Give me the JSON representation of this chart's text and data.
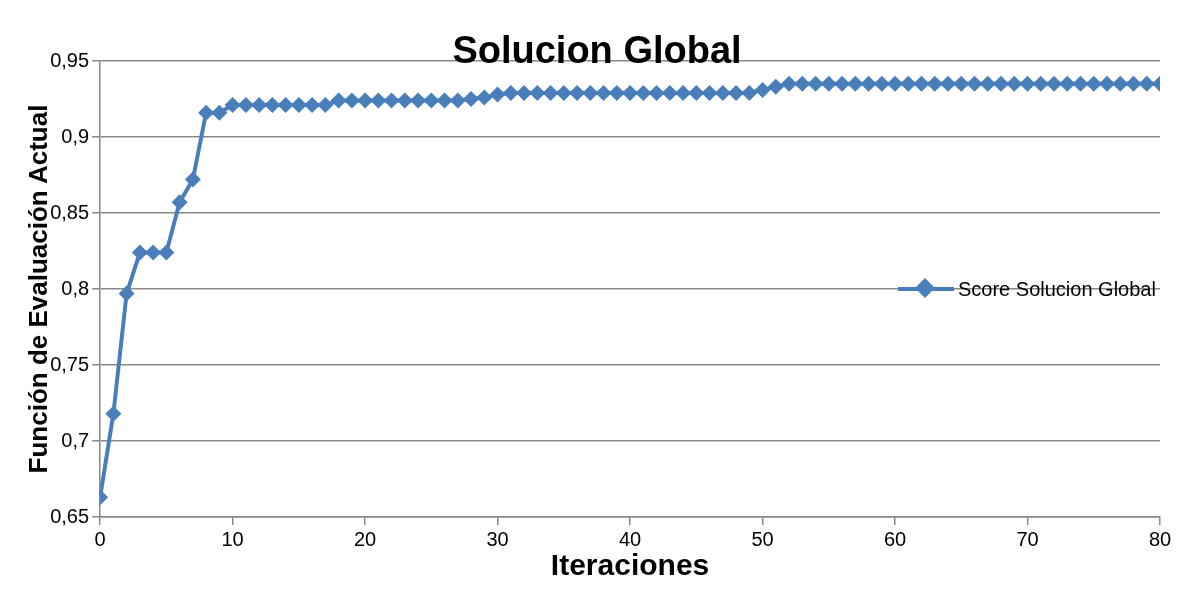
{
  "chart_data": {
    "type": "line",
    "title": "Solucion Global",
    "xlabel": "Iteraciones",
    "ylabel": "Función de Evaluación Actual",
    "x": [
      0,
      1,
      2,
      3,
      4,
      5,
      6,
      7,
      8,
      9,
      10,
      11,
      12,
      13,
      14,
      15,
      16,
      17,
      18,
      19,
      20,
      21,
      22,
      23,
      24,
      25,
      26,
      27,
      28,
      29,
      30,
      31,
      32,
      33,
      34,
      35,
      36,
      37,
      38,
      39,
      40,
      41,
      42,
      43,
      44,
      45,
      46,
      47,
      48,
      49,
      50,
      51,
      52,
      53,
      54,
      55,
      56,
      57,
      58,
      59,
      60,
      61,
      62,
      63,
      64,
      65,
      66,
      67,
      68,
      69,
      70,
      71,
      72,
      73,
      74,
      75,
      76,
      77,
      78,
      79,
      80
    ],
    "series": [
      {
        "name": "Score Solucion Global",
        "color": "#4a7ebb",
        "values": [
          0.663,
          0.718,
          0.797,
          0.824,
          0.824,
          0.824,
          0.857,
          0.872,
          0.916,
          0.916,
          0.921,
          0.921,
          0.921,
          0.921,
          0.921,
          0.921,
          0.921,
          0.921,
          0.924,
          0.924,
          0.924,
          0.924,
          0.924,
          0.924,
          0.924,
          0.924,
          0.924,
          0.924,
          0.925,
          0.926,
          0.928,
          0.929,
          0.929,
          0.929,
          0.929,
          0.929,
          0.929,
          0.929,
          0.929,
          0.929,
          0.929,
          0.929,
          0.929,
          0.929,
          0.929,
          0.929,
          0.929,
          0.929,
          0.929,
          0.929,
          0.931,
          0.933,
          0.935,
          0.935,
          0.935,
          0.935,
          0.935,
          0.935,
          0.935,
          0.935,
          0.935,
          0.935,
          0.935,
          0.935,
          0.935,
          0.935,
          0.935,
          0.935,
          0.935,
          0.935,
          0.935,
          0.935,
          0.935,
          0.935,
          0.935,
          0.935,
          0.935,
          0.935,
          0.935,
          0.935,
          0.935
        ]
      }
    ],
    "xlim": [
      0,
      80
    ],
    "xticks": [
      0,
      10,
      20,
      30,
      40,
      50,
      60,
      70,
      80
    ],
    "ylim": [
      0.65,
      0.95
    ],
    "yticks": [
      {
        "value": 0.65,
        "label": "0,65"
      },
      {
        "value": 0.7,
        "label": "0,7"
      },
      {
        "value": 0.75,
        "label": "0,75"
      },
      {
        "value": 0.8,
        "label": "0,8"
      },
      {
        "value": 0.85,
        "label": "0,85"
      },
      {
        "value": 0.9,
        "label": "0,9"
      },
      {
        "value": 0.95,
        "label": "0,95"
      }
    ],
    "grid": "y",
    "legend": "right",
    "marker": "diamond",
    "line_style": "solid"
  }
}
